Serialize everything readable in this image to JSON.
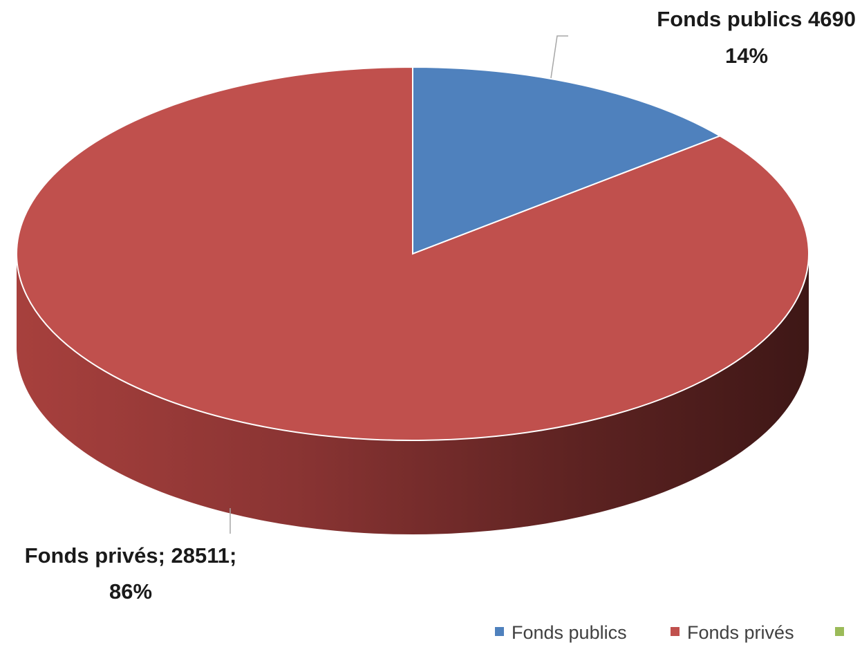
{
  "chart_data": {
    "type": "pie",
    "style": "3d",
    "title": "",
    "series": [
      {
        "name": "Fonds publics",
        "value": 4690,
        "percent": 14,
        "color": "#4f81bd"
      },
      {
        "name": "Fonds privés",
        "value": 28511,
        "percent": 86,
        "color": "#c0504d"
      },
      {
        "name": "",
        "value": 0,
        "percent": 0,
        "color": "#9bbb59"
      }
    ],
    "data_labels": [
      {
        "line1": "Fonds publics 4690",
        "line2": "14%"
      },
      {
        "line1": "Fonds privés; 28511;",
        "line2": "86%"
      }
    ],
    "legend": {
      "placement": "bottom-right",
      "entries": [
        "Fonds publics",
        "Fonds privés",
        ""
      ]
    }
  }
}
